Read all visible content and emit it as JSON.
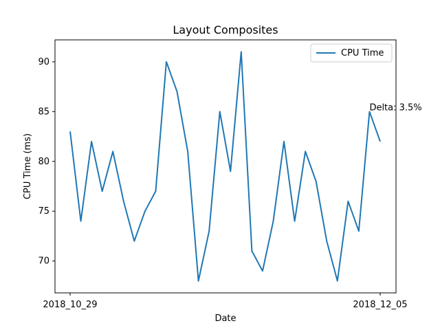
{
  "chart_data": {
    "type": "line",
    "title": "Layout Composites",
    "xlabel": "Date",
    "ylabel": "CPU Time (ms)",
    "x_tick_labels": [
      "2018_10_29",
      "2018_12_05"
    ],
    "y_ticks": [
      70,
      75,
      80,
      85,
      90
    ],
    "y_tick_labels": [
      "70",
      "75",
      "80",
      "85",
      "90"
    ],
    "ylim": [
      66.8,
      92.2
    ],
    "legend_position": "top-right",
    "grid": false,
    "series": [
      {
        "name": "CPU Time",
        "color": "#1f77b4",
        "values": [
          83,
          74,
          82,
          77,
          81,
          76,
          72,
          75,
          77,
          90,
          87,
          81,
          68,
          73,
          85,
          79,
          91,
          71,
          69,
          74,
          82,
          74,
          81,
          78,
          72,
          68,
          76,
          73,
          85,
          82
        ]
      }
    ],
    "annotations": [
      {
        "text": "Delta: 3.5%",
        "x_index": 28,
        "y": 85
      }
    ]
  }
}
